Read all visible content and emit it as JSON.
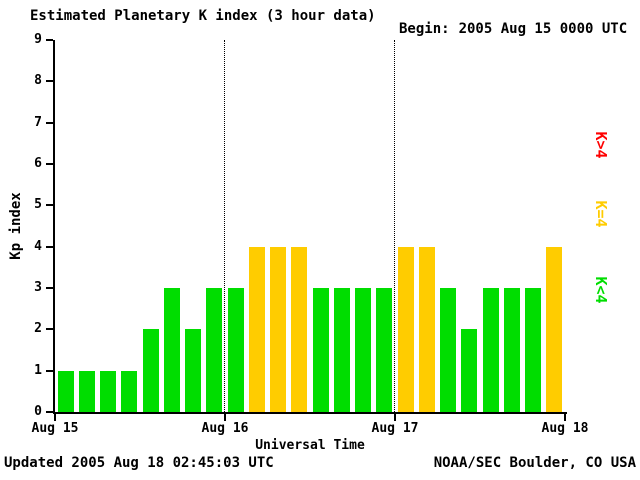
{
  "chart_data": {
    "type": "bar",
    "title": "Estimated Planetary K index (3 hour data)",
    "begin_label": "Begin:",
    "begin_value": "2005 Aug 15 0000 UTC",
    "ylabel": "Kp index",
    "xlabel": "Universal Time",
    "ylim": [
      0,
      9
    ],
    "yticks": [
      0,
      1,
      2,
      3,
      4,
      5,
      6,
      7,
      8,
      9
    ],
    "xticks": [
      "Aug 15",
      "Aug 16",
      "Aug 17",
      "Aug 18"
    ],
    "bar_interval_hours": 3,
    "values": [
      1,
      1,
      1,
      1,
      2,
      3,
      2,
      3,
      3,
      4,
      4,
      4,
      3,
      3,
      3,
      3,
      4,
      4,
      3,
      2,
      3,
      3,
      3,
      4
    ],
    "threshold": 4,
    "grid": "dotted vertical lines at day boundaries",
    "colors": {
      "low": "#00dd00",
      "mid": "#ffcc00",
      "high": "#ff0000",
      "axis": "#000000",
      "background": "#ffffff"
    },
    "legend": [
      {
        "label": "K>4",
        "color": "#ff0000"
      },
      {
        "label": "K=4",
        "color": "#ffcc00"
      },
      {
        "label": "K<4",
        "color": "#00dd00"
      }
    ],
    "footer_left": "Updated 2005 Aug 18 02:45:03 UTC",
    "footer_right": "NOAA/SEC Boulder, CO USA"
  }
}
